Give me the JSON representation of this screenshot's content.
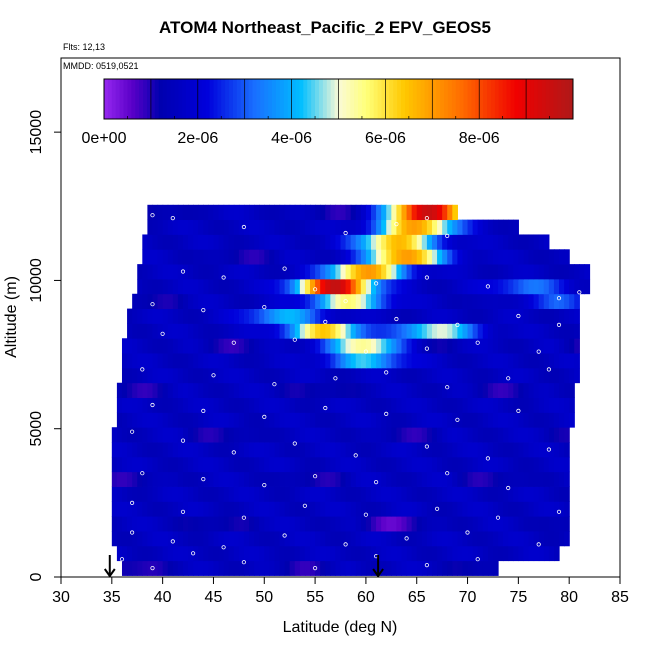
{
  "chart_data": {
    "type": "heatmap",
    "title": "ATOM4 Northeast_Pacific_2 EPV_GEOS5",
    "flights_note": "Flts: 12,13",
    "dates_note": "MMDD: 0519,0521",
    "xlabel": "Latitude (deg N)",
    "ylabel": "Altitude (m)",
    "xlim": [
      30,
      85
    ],
    "ylim": [
      0,
      17500
    ],
    "x_ticks": [
      "30",
      "35",
      "40",
      "45",
      "50",
      "55",
      "60",
      "65",
      "70",
      "75",
      "80",
      "85"
    ],
    "y_ticks": [
      "0",
      "5000",
      "10000",
      "15000"
    ],
    "colorbar": {
      "min": 0,
      "max": 1e-05,
      "orientation": "horizontal",
      "placement": "top",
      "tick_labels": [
        "0e+00",
        "2e-06",
        "4e-06",
        "6e-06",
        "8e-06"
      ],
      "tick_values": [
        0,
        2e-06,
        4e-06,
        6e-06,
        8e-06
      ]
    },
    "grid": false,
    "profile_markers_latitude": [
      34.8,
      61.2
    ],
    "alt_levels_m": [
      300,
      800,
      1300,
      1800,
      2300,
      2800,
      3300,
      3800,
      4300,
      4800,
      5300,
      5800,
      6300,
      6800,
      7300,
      7800,
      8300,
      8800,
      9300,
      9800,
      10300,
      10800,
      11300,
      11800,
      12300
    ],
    "lat_extent_deg": [
      [
        36,
        73
      ],
      [
        35.5,
        79
      ],
      [
        35,
        80
      ],
      [
        35,
        80
      ],
      [
        35,
        80
      ],
      [
        35,
        80
      ],
      [
        35,
        80
      ],
      [
        35,
        80
      ],
      [
        35,
        80
      ],
      [
        35,
        80
      ],
      [
        35.5,
        80.5
      ],
      [
        35.5,
        80.5
      ],
      [
        35.5,
        80.5
      ],
      [
        36,
        81
      ],
      [
        36,
        81
      ],
      [
        36,
        81
      ],
      [
        36.5,
        81
      ],
      [
        36.5,
        81
      ],
      [
        37,
        81
      ],
      [
        37.5,
        82
      ],
      [
        37.5,
        82
      ],
      [
        38,
        80
      ],
      [
        38,
        78
      ],
      [
        38.5,
        75
      ],
      [
        38.5,
        69
      ]
    ],
    "epv_peaks": [
      {
        "alt_m": 300,
        "lat": 38,
        "value": 1.3e-06
      },
      {
        "alt_m": 300,
        "lat": 79,
        "value": 3.4e-06
      },
      {
        "alt_m": 1800,
        "lat": 62,
        "value": 1.2e-06
      },
      {
        "alt_m": 7300,
        "lat": 60,
        "value": 4.2e-06
      },
      {
        "alt_m": 7800,
        "lat": 60,
        "value": 5.6e-06
      },
      {
        "alt_m": 8300,
        "lat": 56,
        "value": 6.2e-06
      },
      {
        "alt_m": 8300,
        "lat": 67,
        "value": 5e-06
      },
      {
        "alt_m": 8800,
        "lat": 52,
        "value": 4e-06
      },
      {
        "alt_m": 9300,
        "lat": 58,
        "value": 5.8e-06
      },
      {
        "alt_m": 9300,
        "lat": 78,
        "value": 3e-06
      },
      {
        "alt_m": 9800,
        "lat": 57,
        "value": 9.4e-06
      },
      {
        "alt_m": 9800,
        "lat": 76,
        "value": 3.2e-06
      },
      {
        "alt_m": 10300,
        "lat": 60,
        "value": 7e-06
      },
      {
        "alt_m": 10800,
        "lat": 64,
        "value": 7.6e-06
      },
      {
        "alt_m": 11300,
        "lat": 63,
        "value": 6.6e-06
      },
      {
        "alt_m": 11800,
        "lat": 65,
        "value": 7e-06
      },
      {
        "alt_m": 12300,
        "lat": 66,
        "value": 9.6e-06
      }
    ],
    "sample_points": [
      [
        39,
        12200
      ],
      [
        41,
        12100
      ],
      [
        48,
        11800
      ],
      [
        58,
        11600
      ],
      [
        63,
        11900
      ],
      [
        66,
        12100
      ],
      [
        68,
        11500
      ],
      [
        42,
        10300
      ],
      [
        46,
        10100
      ],
      [
        52,
        10400
      ],
      [
        55,
        9700
      ],
      [
        58,
        9300
      ],
      [
        61,
        9900
      ],
      [
        66,
        10100
      ],
      [
        72,
        9800
      ],
      [
        79,
        9400
      ],
      [
        81,
        9600
      ],
      [
        39,
        9200
      ],
      [
        44,
        9000
      ],
      [
        50,
        9100
      ],
      [
        56,
        8600
      ],
      [
        63,
        8700
      ],
      [
        69,
        8500
      ],
      [
        75,
        8800
      ],
      [
        79,
        8500
      ],
      [
        40,
        8200
      ],
      [
        47,
        7900
      ],
      [
        53,
        8000
      ],
      [
        60,
        7600
      ],
      [
        66,
        7700
      ],
      [
        71,
        7900
      ],
      [
        77,
        7600
      ],
      [
        38,
        7000
      ],
      [
        45,
        6800
      ],
      [
        51,
        6500
      ],
      [
        57,
        6700
      ],
      [
        62,
        6900
      ],
      [
        68,
        6400
      ],
      [
        74,
        6700
      ],
      [
        78,
        7000
      ],
      [
        39,
        5800
      ],
      [
        44,
        5600
      ],
      [
        50,
        5400
      ],
      [
        56,
        5700
      ],
      [
        62,
        5500
      ],
      [
        69,
        5300
      ],
      [
        75,
        5600
      ],
      [
        37,
        4900
      ],
      [
        42,
        4600
      ],
      [
        47,
        4200
      ],
      [
        53,
        4500
      ],
      [
        59,
        4100
      ],
      [
        66,
        4400
      ],
      [
        72,
        4000
      ],
      [
        78,
        4300
      ],
      [
        38,
        3500
      ],
      [
        44,
        3300
      ],
      [
        50,
        3100
      ],
      [
        55,
        3400
      ],
      [
        61,
        3200
      ],
      [
        68,
        3500
      ],
      [
        74,
        3000
      ],
      [
        37,
        2500
      ],
      [
        42,
        2200
      ],
      [
        48,
        2000
      ],
      [
        54,
        2400
      ],
      [
        60,
        2100
      ],
      [
        67,
        2300
      ],
      [
        73,
        2000
      ],
      [
        79,
        2200
      ],
      [
        37,
        1500
      ],
      [
        41,
        1200
      ],
      [
        46,
        1000
      ],
      [
        52,
        1400
      ],
      [
        58,
        1100
      ],
      [
        64,
        1300
      ],
      [
        70,
        1500
      ],
      [
        77,
        1100
      ],
      [
        36,
        600
      ],
      [
        39,
        300
      ],
      [
        43,
        800
      ],
      [
        48,
        500
      ],
      [
        55,
        300
      ],
      [
        61,
        700
      ],
      [
        66,
        400
      ],
      [
        71,
        600
      ],
      [
        74,
        200
      ]
    ]
  }
}
